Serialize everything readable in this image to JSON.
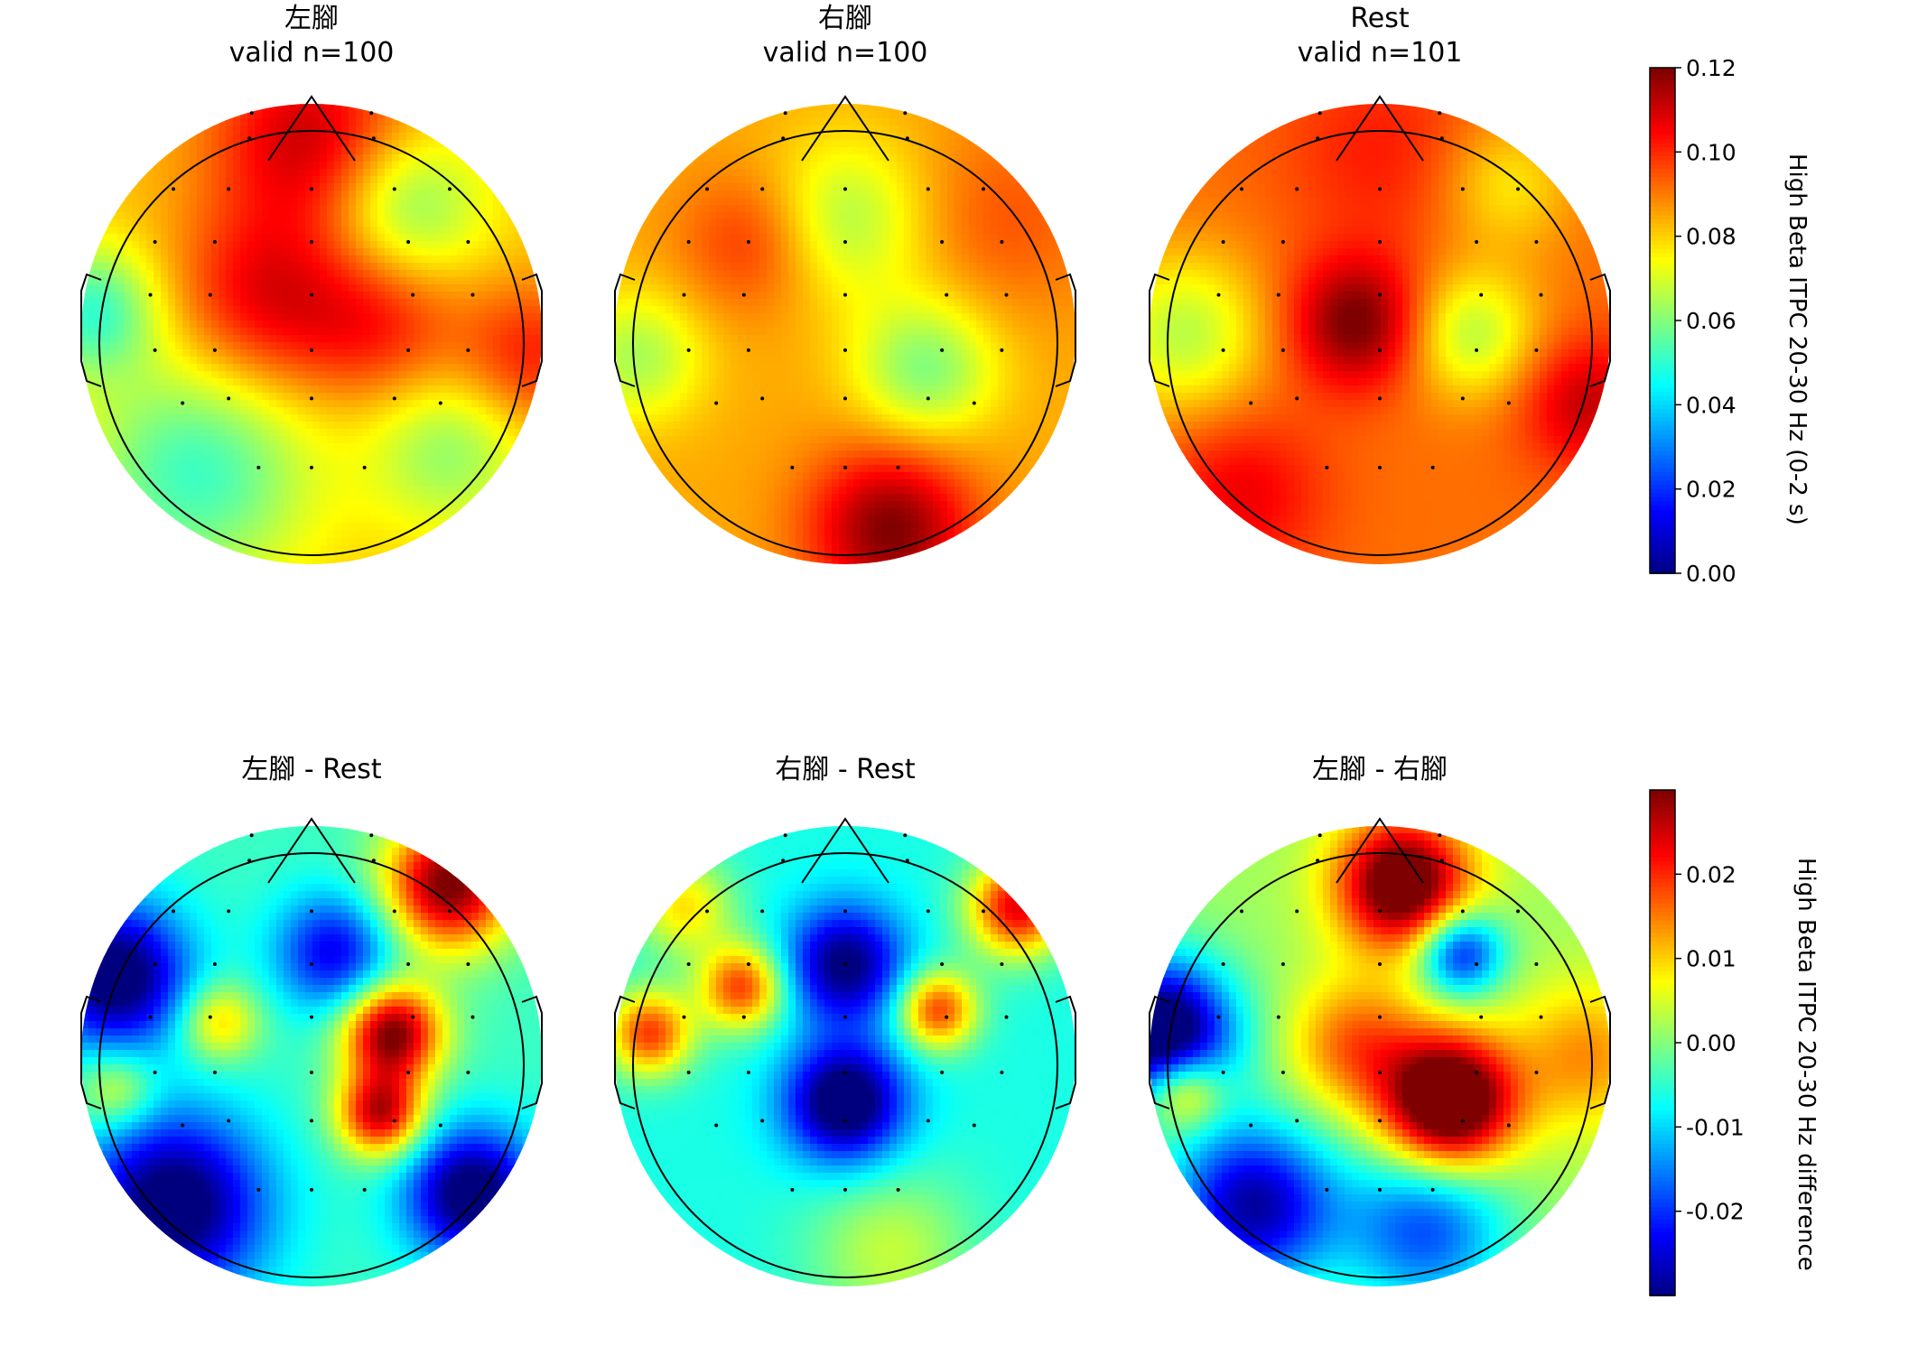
{
  "colormap": [
    "#00007f",
    "#0000ff",
    "#007fff",
    "#00ffff",
    "#7fff7f",
    "#ffff00",
    "#ff7f00",
    "#ff0000",
    "#7f0000"
  ],
  "chart_data": [
    {
      "type": "heatmap",
      "subtype": "topomap",
      "title_line1": "左腳",
      "title_line2": "valid n=100",
      "scale": "itpc",
      "blobs": [
        {
          "x": 0.0,
          "y": 0.85,
          "amp": 0.03,
          "s": 0.3
        },
        {
          "x": 0.4,
          "y": 0.55,
          "amp": -0.025,
          "s": 0.25
        },
        {
          "x": -0.2,
          "y": 0.15,
          "amp": 0.025,
          "s": 0.28
        },
        {
          "x": 0.3,
          "y": 0.05,
          "amp": 0.02,
          "s": 0.25
        },
        {
          "x": 0.95,
          "y": -0.1,
          "amp": 0.02,
          "s": 0.22
        },
        {
          "x": -0.5,
          "y": -0.6,
          "amp": -0.03,
          "s": 0.35
        },
        {
          "x": -0.95,
          "y": 0.1,
          "amp": -0.03,
          "s": 0.2
        },
        {
          "x": 0.6,
          "y": -0.5,
          "amp": -0.02,
          "s": 0.25
        }
      ],
      "base": 0.082
    },
    {
      "type": "heatmap",
      "subtype": "topomap",
      "title_line1": "右腳",
      "title_line2": "valid n=100",
      "scale": "itpc",
      "blobs": [
        {
          "x": 0.0,
          "y": 0.5,
          "amp": -0.02,
          "s": 0.25
        },
        {
          "x": -0.4,
          "y": 0.4,
          "amp": 0.015,
          "s": 0.22
        },
        {
          "x": 0.35,
          "y": -0.15,
          "amp": -0.025,
          "s": 0.22
        },
        {
          "x": 0.2,
          "y": -0.85,
          "amp": 0.035,
          "s": 0.25
        },
        {
          "x": -0.9,
          "y": -0.1,
          "amp": -0.02,
          "s": 0.2
        },
        {
          "x": 0.7,
          "y": 0.5,
          "amp": 0.01,
          "s": 0.3
        }
      ],
      "base": 0.085
    },
    {
      "type": "heatmap",
      "subtype": "topomap",
      "title_line1": "Rest",
      "title_line2": "valid n=101",
      "scale": "itpc",
      "blobs": [
        {
          "x": -0.1,
          "y": 0.05,
          "amp": 0.03,
          "s": 0.2
        },
        {
          "x": 0.4,
          "y": 0.0,
          "amp": -0.025,
          "s": 0.2
        },
        {
          "x": -0.85,
          "y": 0.0,
          "amp": -0.025,
          "s": 0.25
        },
        {
          "x": 0.55,
          "y": 0.65,
          "amp": -0.015,
          "s": 0.2
        },
        {
          "x": -0.6,
          "y": -0.7,
          "amp": 0.015,
          "s": 0.25
        },
        {
          "x": 0.9,
          "y": -0.3,
          "amp": 0.02,
          "s": 0.2
        },
        {
          "x": 0.0,
          "y": 0.8,
          "amp": 0.01,
          "s": 0.3
        }
      ],
      "base": 0.092
    },
    {
      "type": "heatmap",
      "subtype": "topomap",
      "title_line1": "左腳 - Rest",
      "title_line2": "",
      "scale": "diff",
      "blobs": [
        {
          "x": 0.6,
          "y": 0.75,
          "amp": 0.035,
          "s": 0.2
        },
        {
          "x": 0.35,
          "y": 0.1,
          "amp": 0.035,
          "s": 0.15
        },
        {
          "x": 0.3,
          "y": -0.25,
          "amp": 0.03,
          "s": 0.13
        },
        {
          "x": 0.1,
          "y": 0.45,
          "amp": -0.02,
          "s": 0.18
        },
        {
          "x": -0.6,
          "y": -0.65,
          "amp": -0.03,
          "s": 0.28
        },
        {
          "x": -0.85,
          "y": 0.35,
          "amp": -0.03,
          "s": 0.22
        },
        {
          "x": 0.7,
          "y": -0.6,
          "amp": -0.03,
          "s": 0.2
        },
        {
          "x": -0.4,
          "y": 0.15,
          "amp": 0.015,
          "s": 0.12
        },
        {
          "x": -0.85,
          "y": -0.15,
          "amp": 0.012,
          "s": 0.12
        }
      ],
      "base": -0.004
    },
    {
      "type": "heatmap",
      "subtype": "topomap",
      "title_line1": "右腳 - Rest",
      "title_line2": "",
      "scale": "diff",
      "blobs": [
        {
          "x": 0.0,
          "y": -0.2,
          "amp": -0.03,
          "s": 0.18
        },
        {
          "x": 0.0,
          "y": 0.4,
          "amp": -0.025,
          "s": 0.18
        },
        {
          "x": -0.45,
          "y": 0.3,
          "amp": 0.025,
          "s": 0.13
        },
        {
          "x": -0.85,
          "y": 0.1,
          "amp": 0.025,
          "s": 0.13
        },
        {
          "x": 0.4,
          "y": 0.2,
          "amp": 0.025,
          "s": 0.12
        },
        {
          "x": 0.75,
          "y": 0.65,
          "amp": 0.03,
          "s": 0.15
        },
        {
          "x": -0.7,
          "y": 0.65,
          "amp": 0.015,
          "s": 0.15
        },
        {
          "x": 0.2,
          "y": -0.85,
          "amp": 0.01,
          "s": 0.25
        }
      ],
      "base": -0.006
    },
    {
      "type": "heatmap",
      "subtype": "topomap",
      "title_line1": "左腳 - 右腳",
      "title_line2": "",
      "scale": "diff",
      "blobs": [
        {
          "x": 0.1,
          "y": 0.75,
          "amp": 0.035,
          "s": 0.2
        },
        {
          "x": 0.3,
          "y": -0.2,
          "amp": 0.04,
          "s": 0.2
        },
        {
          "x": -0.1,
          "y": 0.05,
          "amp": 0.015,
          "s": 0.2
        },
        {
          "x": -0.95,
          "y": 0.1,
          "amp": -0.04,
          "s": 0.22
        },
        {
          "x": 0.35,
          "y": 0.45,
          "amp": -0.025,
          "s": 0.13
        },
        {
          "x": -0.55,
          "y": -0.65,
          "amp": -0.03,
          "s": 0.25
        },
        {
          "x": 0.2,
          "y": -0.75,
          "amp": -0.02,
          "s": 0.25
        },
        {
          "x": 0.9,
          "y": 0.0,
          "amp": 0.012,
          "s": 0.22
        },
        {
          "x": -0.85,
          "y": -0.15,
          "amp": 0.02,
          "s": 0.12
        }
      ],
      "base": 0.002
    }
  ],
  "colorbars": {
    "top": {
      "label": "High Beta ITPC 20-30 Hz (0-2 s)",
      "vmin": 0.0,
      "vmax": 0.12,
      "ticks": [
        0.0,
        0.02,
        0.04,
        0.06,
        0.08,
        0.1,
        0.12
      ],
      "tick_labels": [
        "0.00",
        "0.02",
        "0.04",
        "0.06",
        "0.08",
        "0.10",
        "0.12"
      ]
    },
    "bottom": {
      "label": "High Beta ITPC 20-30 Hz difference",
      "vmin": -0.03,
      "vmax": 0.03,
      "ticks": [
        -0.02,
        -0.01,
        0.0,
        0.01,
        0.02
      ],
      "tick_labels": [
        "-0.02",
        "-0.01",
        "0.00",
        "0.01",
        "0.02"
      ]
    }
  },
  "electrodes": [
    [
      -0.26,
      0.96
    ],
    [
      0.26,
      0.96
    ],
    [
      -0.27,
      0.85
    ],
    [
      0.27,
      0.85
    ],
    [
      -0.6,
      0.63
    ],
    [
      -0.36,
      0.63
    ],
    [
      0.0,
      0.63
    ],
    [
      0.36,
      0.63
    ],
    [
      0.6,
      0.63
    ],
    [
      -0.68,
      0.4
    ],
    [
      -0.42,
      0.4
    ],
    [
      0.0,
      0.4
    ],
    [
      0.42,
      0.4
    ],
    [
      0.68,
      0.4
    ],
    [
      -0.7,
      0.17
    ],
    [
      -0.44,
      0.17
    ],
    [
      0.0,
      0.17
    ],
    [
      0.44,
      0.17
    ],
    [
      0.7,
      0.17
    ],
    [
      -0.68,
      -0.07
    ],
    [
      -0.42,
      -0.07
    ],
    [
      0.0,
      -0.07
    ],
    [
      0.42,
      -0.07
    ],
    [
      0.68,
      -0.07
    ],
    [
      -0.56,
      -0.3
    ],
    [
      -0.36,
      -0.28
    ],
    [
      0.0,
      -0.28
    ],
    [
      0.36,
      -0.28
    ],
    [
      0.56,
      -0.3
    ],
    [
      -0.23,
      -0.58
    ],
    [
      0.0,
      -0.58
    ],
    [
      0.23,
      -0.58
    ]
  ]
}
